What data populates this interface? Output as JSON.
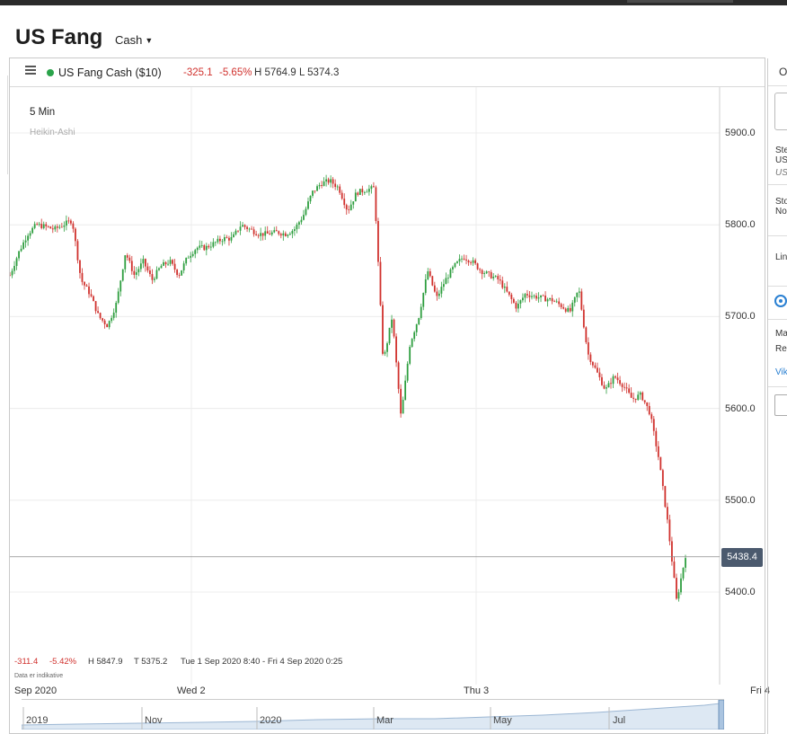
{
  "page": {
    "title": "US Fang",
    "variant": "Cash"
  },
  "toolbar": {
    "instrument": "US Fang Cash ($10)",
    "change": "-325.1",
    "change_pct": "-5.65%",
    "high": "H 5764.9",
    "low": "L 5374.3"
  },
  "chart_info": {
    "interval": "5 Min",
    "candle_type": "Heikin-Ashi"
  },
  "chart_data": {
    "type": "candlestick",
    "ylim": [
      5350,
      5930
    ],
    "yticks": [
      "5900.0",
      "5800.0",
      "5700.0",
      "5600.0",
      "5500.0",
      "5400.0"
    ],
    "last_price": "5438.4",
    "x_labels": [
      "Sep 2020",
      "Wed 2",
      "Thu 3",
      "Fri 4"
    ],
    "series": [
      {
        "values": [
          5745,
          5770,
          5790,
          5800,
          5798,
          5795,
          5800,
          5805,
          5740,
          5725,
          5700,
          5690,
          5715,
          5770,
          5745,
          5760,
          5740,
          5755,
          5760,
          5745,
          5765,
          5775,
          5775,
          5780,
          5785,
          5785,
          5800,
          5795,
          5790,
          5790,
          5792,
          5790,
          5795,
          5810,
          5835,
          5845,
          5848,
          5840,
          5815,
          5835,
          5838,
          5840,
          5650,
          5700,
          5590,
          5670,
          5700,
          5750,
          5720,
          5740,
          5755,
          5765,
          5760,
          5750,
          5745,
          5740,
          5725,
          5710,
          5725,
          5722,
          5720,
          5718,
          5712,
          5705,
          5730,
          5660,
          5640,
          5620,
          5635,
          5625,
          5610,
          5615,
          5595,
          5545,
          5475,
          5390,
          5440
        ]
      }
    ],
    "bottom_change": "-311.4",
    "bottom_change_pct": "-5.42%",
    "bottom_high": "H 5847.9",
    "bottom_low": "T 5375.2",
    "range": "Tue 1 Sep 2020 8:40 - Fri 4 Sep 2020 0:25",
    "note": "Data er indikative"
  },
  "navigator": {
    "labels": [
      "2019",
      "Nov",
      "2020",
      "Mar",
      "May",
      "Jul"
    ]
  },
  "right": {
    "tab": "O",
    "lines": [
      "Ste",
      "US",
      "US",
      "Sto",
      "No",
      "Lin",
      "Ma",
      "Re",
      "Vik"
    ]
  },
  "colors": {
    "up": "#2e9e3f",
    "down": "#d0312d",
    "badge": "#4b5a6e",
    "link": "#2a80d2"
  }
}
